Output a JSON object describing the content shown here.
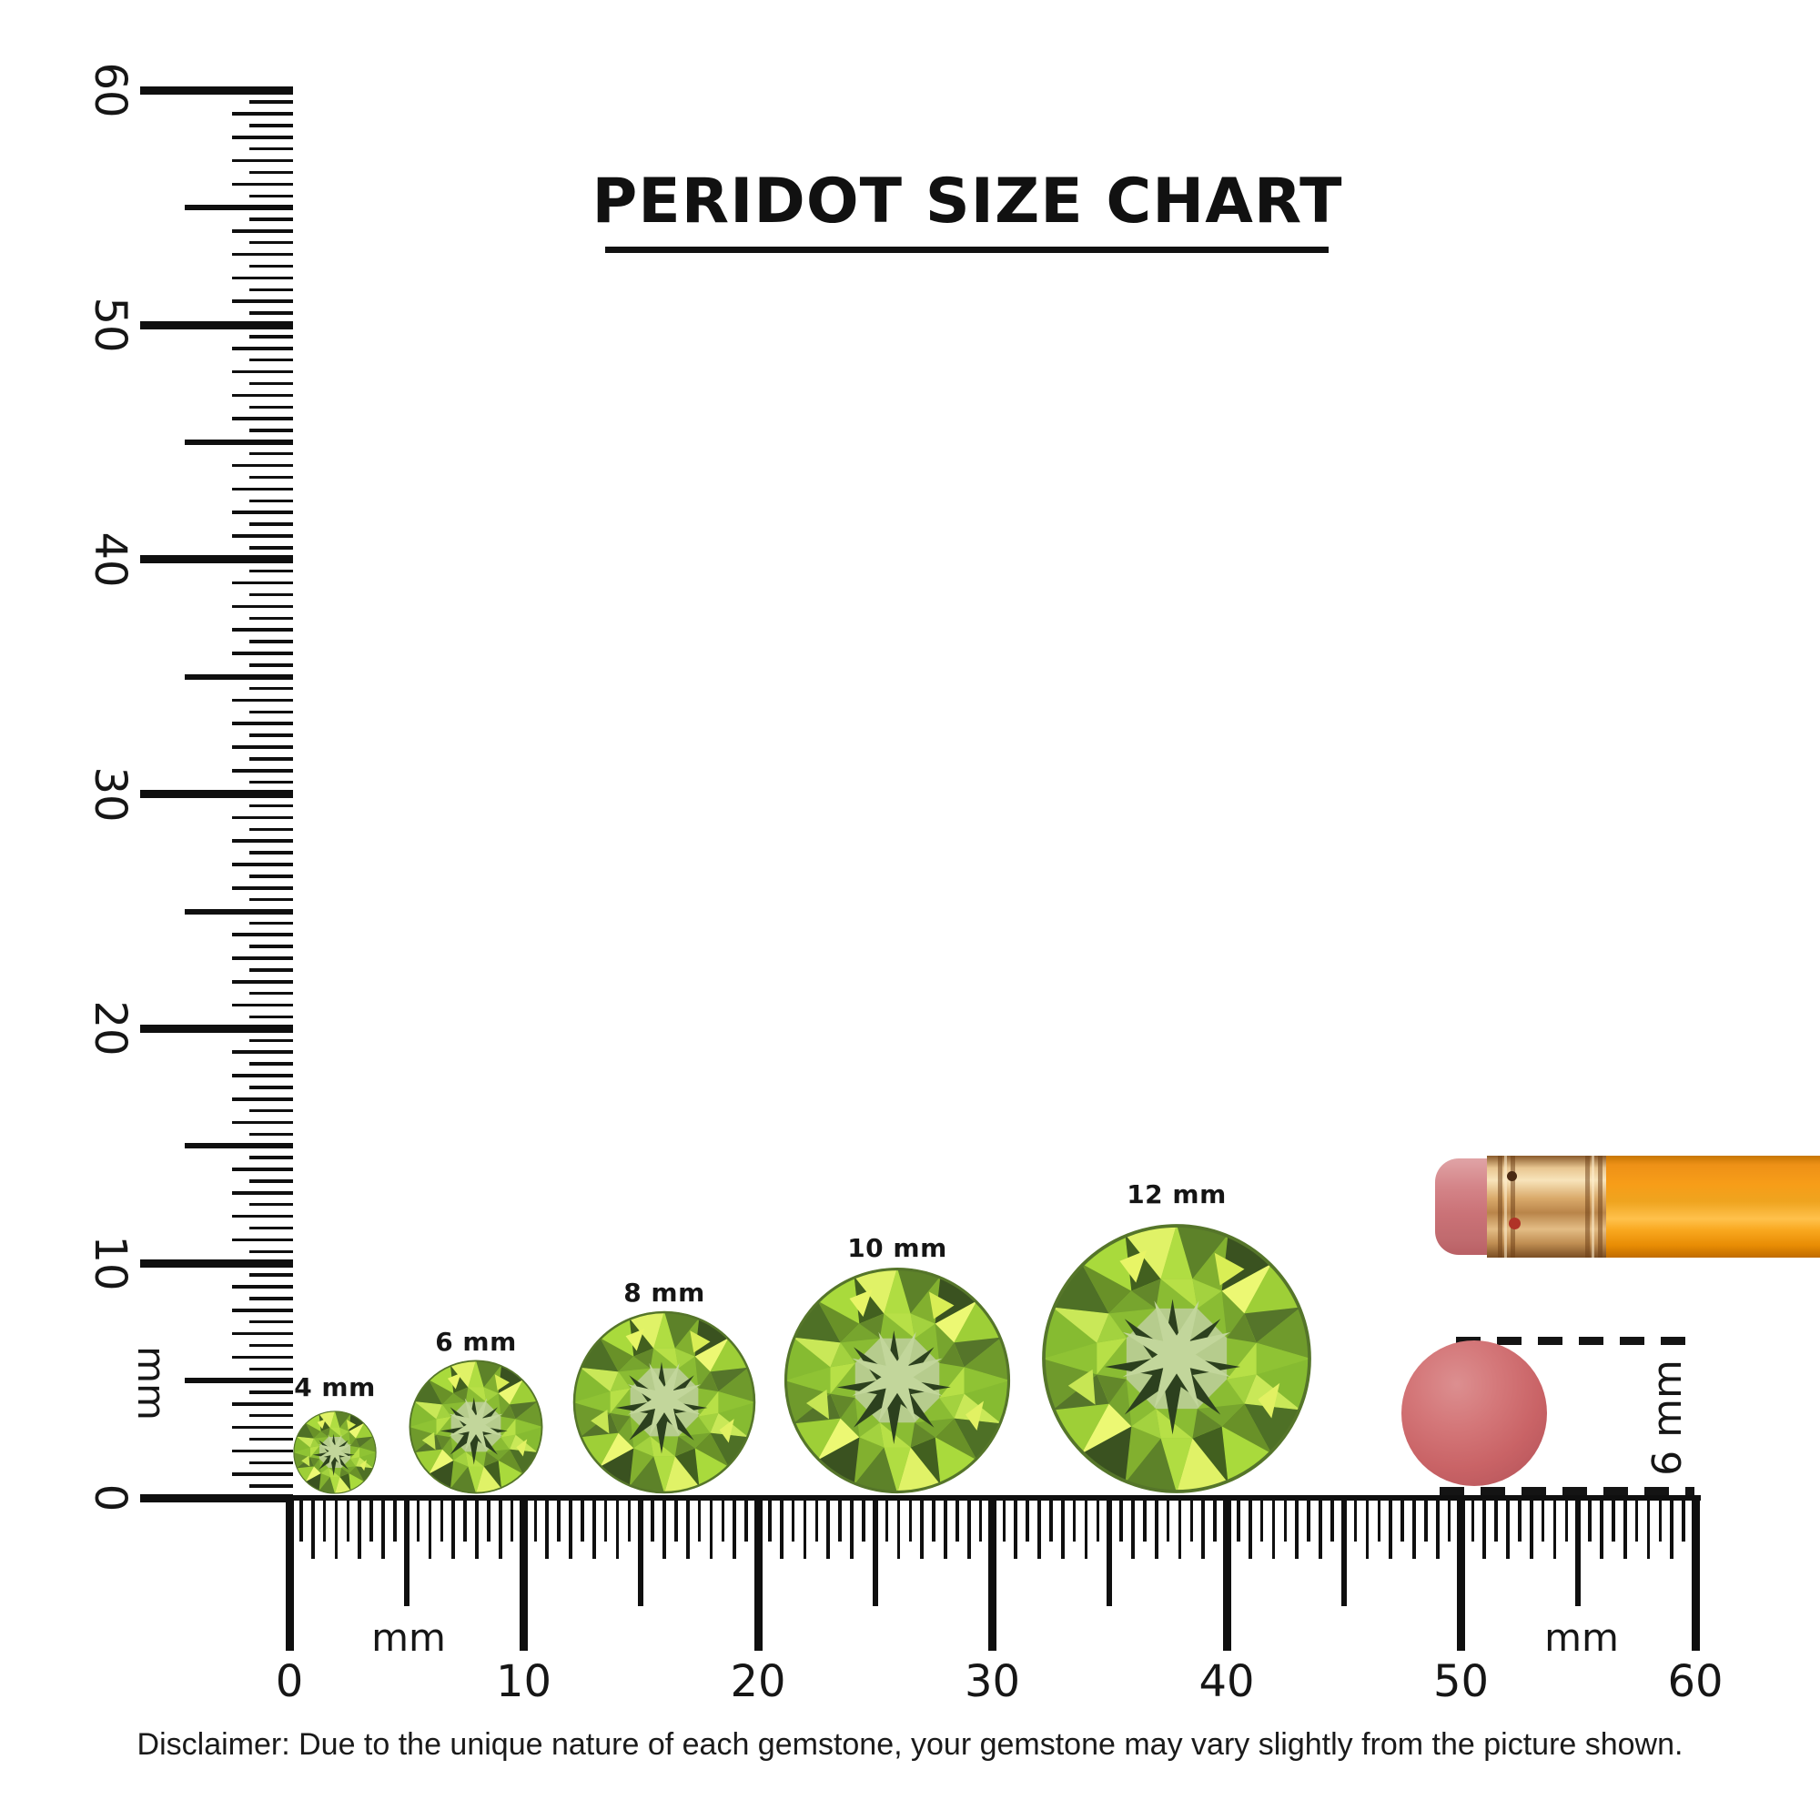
{
  "title": "PERIDOT SIZE CHART",
  "rulers": {
    "vertical": {
      "unit": "mm",
      "labels": [
        "0",
        "10",
        "20",
        "30",
        "40",
        "50",
        "60"
      ]
    },
    "horizontal": {
      "unit": "mm",
      "unit_right": "mm",
      "labels": [
        "0",
        "10",
        "20",
        "30",
        "40",
        "50",
        "60"
      ]
    }
  },
  "gems": [
    {
      "label": "4 mm",
      "size_mm": 4
    },
    {
      "label": "6 mm",
      "size_mm": 6
    },
    {
      "label": "8 mm",
      "size_mm": 8
    },
    {
      "label": "10 mm",
      "size_mm": 10
    },
    {
      "label": "12 mm",
      "size_mm": 12
    }
  ],
  "eraser_dot": {
    "label": "6 mm",
    "diameter_mm": 6
  },
  "disclaimer": "Disclaimer: Due to the unique nature of each gemstone, your gemstone may vary slightly from the picture shown.",
  "colors": {
    "ink": "#111111",
    "gem_bright_green": "#a9da3c",
    "gem_dark_green": "#3a5220",
    "gem_table_sage": "#b6cc8d",
    "gem_highlight": "#ecf873",
    "eraser_dot_pink": "#c96366",
    "pencil_body_orange": "#f79d18",
    "pencil_ferrule_gold": "#d9a96a",
    "pencil_eraser_pink": "#ca7277"
  },
  "chart_data": {
    "type": "scatter",
    "subtype": "gemstone_size_comparison",
    "title": "PERIDOT SIZE CHART",
    "categories": [
      "4 mm",
      "6 mm",
      "8 mm",
      "10 mm",
      "12 mm"
    ],
    "values": [
      4,
      6,
      8,
      10,
      12
    ],
    "units": "mm",
    "xlabel": "mm",
    "ylabel": "mm",
    "x_axis_range": [
      0,
      60
    ],
    "y_axis_range": [
      0,
      60
    ],
    "axis_tick_step_mm": 10,
    "minor_tick_step_mm": 0.5,
    "gem_center_positions_mm": [
      2,
      8,
      16,
      26,
      38
    ],
    "reference_objects": [
      {
        "name": "pencil with eraser",
        "position": "top right of horizontal ruler"
      },
      {
        "name": "eraser dot",
        "diameter_mm": 6,
        "label": "6 mm"
      }
    ],
    "legend": "none",
    "grid": false
  }
}
